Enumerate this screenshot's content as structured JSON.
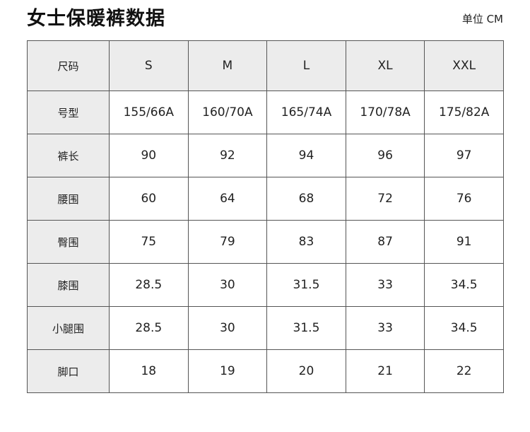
{
  "title": "女士保暖裤数据",
  "unit": "单位 CM",
  "table": {
    "header_label": "尺码",
    "sizes": [
      "S",
      "M",
      "L",
      "XL",
      "XXL"
    ],
    "rows": [
      {
        "label": "号型",
        "values": [
          "155/66A",
          "160/70A",
          "165/74A",
          "170/78A",
          "175/82A"
        ]
      },
      {
        "label": "裤长",
        "values": [
          "90",
          "92",
          "94",
          "96",
          "97"
        ]
      },
      {
        "label": "腰围",
        "values": [
          "60",
          "64",
          "68",
          "72",
          "76"
        ]
      },
      {
        "label": "臀围",
        "values": [
          "75",
          "79",
          "83",
          "87",
          "91"
        ]
      },
      {
        "label": "膝围",
        "values": [
          "28.5",
          "30",
          "31.5",
          "33",
          "34.5"
        ]
      },
      {
        "label": "小腿围",
        "values": [
          "28.5",
          "30",
          "31.5",
          "33",
          "34.5"
        ]
      },
      {
        "label": "脚口",
        "values": [
          "18",
          "19",
          "20",
          "21",
          "22"
        ]
      }
    ]
  }
}
